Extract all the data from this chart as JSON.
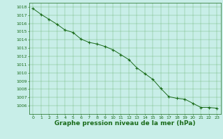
{
  "x": [
    0,
    1,
    2,
    3,
    4,
    5,
    6,
    7,
    8,
    9,
    10,
    11,
    12,
    13,
    14,
    15,
    16,
    17,
    18,
    19,
    20,
    21,
    22,
    23
  ],
  "y": [
    1017.8,
    1017.1,
    1016.5,
    1015.9,
    1015.2,
    1014.9,
    1014.1,
    1013.7,
    1013.5,
    1013.2,
    1012.8,
    1012.2,
    1011.6,
    1010.6,
    1009.9,
    1009.2,
    1008.1,
    1007.1,
    1006.9,
    1006.8,
    1006.3,
    1005.8,
    1005.8,
    1005.7
  ],
  "line_color": "#1a6b1a",
  "marker": "+",
  "marker_size": 3,
  "marker_color": "#1a6b1a",
  "bg_color": "#c8eee8",
  "grid_color": "#5aaa5a",
  "tick_color": "#1a6b1a",
  "label_color": "#1a6b1a",
  "title": "Graphe pression niveau de la mer (hPa)",
  "title_fontsize": 6.5,
  "ylim": [
    1005.0,
    1018.5
  ],
  "xlim": [
    -0.5,
    23.5
  ],
  "yticks": [
    1006,
    1007,
    1008,
    1009,
    1010,
    1011,
    1012,
    1013,
    1014,
    1015,
    1016,
    1017,
    1018
  ],
  "xticks": [
    0,
    1,
    2,
    3,
    4,
    5,
    6,
    7,
    8,
    9,
    10,
    11,
    12,
    13,
    14,
    15,
    16,
    17,
    18,
    19,
    20,
    21,
    22,
    23
  ],
  "tick_fontsize": 4.5,
  "linewidth": 0.7
}
